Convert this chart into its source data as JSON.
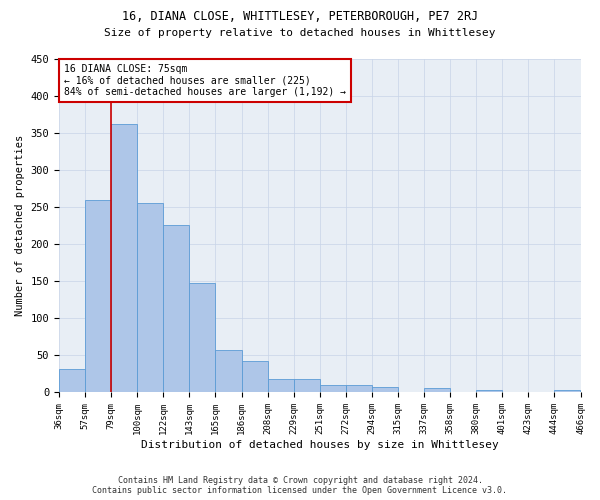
{
  "title1": "16, DIANA CLOSE, WHITTLESEY, PETERBOROUGH, PE7 2RJ",
  "title2": "Size of property relative to detached houses in Whittlesey",
  "xlabel": "Distribution of detached houses by size in Whittlesey",
  "ylabel": "Number of detached properties",
  "footer1": "Contains HM Land Registry data © Crown copyright and database right 2024.",
  "footer2": "Contains public sector information licensed under the Open Government Licence v3.0.",
  "bar_values": [
    31,
    260,
    362,
    256,
    226,
    148,
    57,
    43,
    18,
    18,
    10,
    10,
    7,
    0,
    6,
    0,
    4,
    0,
    0,
    4
  ],
  "categories": [
    "36sqm",
    "57sqm",
    "79sqm",
    "100sqm",
    "122sqm",
    "143sqm",
    "165sqm",
    "186sqm",
    "208sqm",
    "229sqm",
    "251sqm",
    "272sqm",
    "294sqm",
    "315sqm",
    "337sqm",
    "358sqm",
    "380sqm",
    "401sqm",
    "423sqm",
    "444sqm",
    "466sqm"
  ],
  "bar_color": "#aec6e8",
  "bar_edge_color": "#5b9bd5",
  "grid_color": "#c8d4e8",
  "bg_color": "#e8eef5",
  "annotation_box_color": "#cc0000",
  "property_line_color": "#cc0000",
  "property_label": "16 DIANA CLOSE: 75sqm",
  "annotation_line1": "← 16% of detached houses are smaller (225)",
  "annotation_line2": "84% of semi-detached houses are larger (1,192) →",
  "ylim": [
    0,
    430
  ],
  "yticks": [
    0,
    50,
    100,
    150,
    200,
    250,
    300,
    350,
    400,
    450
  ],
  "property_line_x": 2.0,
  "figsize": [
    6.0,
    5.0
  ],
  "dpi": 100
}
